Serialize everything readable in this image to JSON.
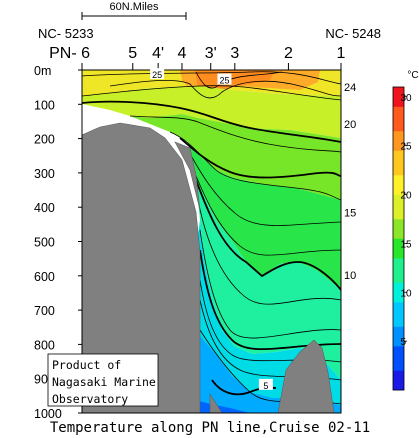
{
  "chart_data": {
    "type": "heatmap",
    "title": "Temperature along PN line,Cruise 02-11",
    "unit": "°C",
    "scale_bar_label": "60N.Miles",
    "station_ids": {
      "left": "NC- 5233",
      "right": "NC- 5248"
    },
    "stations": [
      {
        "label": "PN- 6",
        "pos": 0
      },
      {
        "label": "5",
        "pos": 0.196
      },
      {
        "label": "4'",
        "pos": 0.294
      },
      {
        "label": "4",
        "pos": 0.386
      },
      {
        "label": "3'",
        "pos": 0.497
      },
      {
        "label": "3",
        "pos": 0.59
      },
      {
        "label": "2",
        "pos": 0.797
      },
      {
        "label": "1",
        "pos": 1
      }
    ],
    "depth_ticks": [
      {
        "value": 0,
        "label": "0m"
      },
      {
        "value": 100,
        "label": "100"
      },
      {
        "value": 200,
        "label": "200"
      },
      {
        "value": 300,
        "label": "300"
      },
      {
        "value": 400,
        "label": "400"
      },
      {
        "value": 500,
        "label": "500"
      },
      {
        "value": 600,
        "label": "600"
      },
      {
        "value": 700,
        "label": "700"
      },
      {
        "value": 800,
        "label": "800"
      },
      {
        "value": 900,
        "label": "900"
      },
      {
        "value": 1000,
        "label": "1000"
      }
    ],
    "ylim": [
      0,
      1000
    ],
    "colorbar": {
      "range": [
        0,
        31
      ],
      "tick_labels": [
        {
          "value": 30,
          "label": "30"
        },
        {
          "value": 25,
          "label": "25"
        },
        {
          "value": 20,
          "label": "20"
        },
        {
          "value": 15,
          "label": "15"
        },
        {
          "value": 10,
          "label": "10"
        },
        {
          "value": 5,
          "label": "5"
        }
      ],
      "colors": [
        "#1a1ae6",
        "#0050ff",
        "#0090ff",
        "#00c8ff",
        "#00f0dc",
        "#1ef08c",
        "#28e628",
        "#8ce628",
        "#dcf028",
        "#fff028",
        "#ffc81e",
        "#ff961e",
        "#ff5a1e",
        "#f0141e"
      ]
    },
    "contour_labels": [
      {
        "value": 25,
        "label": "25",
        "pos": 0.29,
        "depth": 12
      },
      {
        "value": 25,
        "label": "25",
        "pos": 0.55,
        "depth": 28
      },
      {
        "value": 24,
        "label": "24",
        "pos": 1.04,
        "depth": 50
      },
      {
        "value": 20,
        "label": "20",
        "pos": 1.04,
        "depth": 158
      },
      {
        "value": 15,
        "label": "15",
        "pos": 1.04,
        "depth": 416
      },
      {
        "value": 10,
        "label": "10",
        "pos": 1.04,
        "depth": 597
      },
      {
        "value": 5,
        "label": "5",
        "pos": 0.71,
        "depth": 918
      }
    ],
    "annotation": [
      "Product of",
      "Nagasaki Marine",
      "Observatory"
    ]
  }
}
